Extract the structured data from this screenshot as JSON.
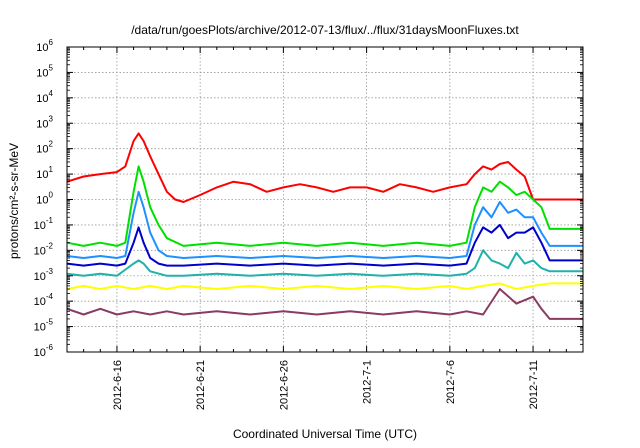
{
  "chart_data": {
    "type": "line",
    "title": "/data/run/goesPlots/archive/2012-07-13/flux/../flux/31daysMoonFluxes.txt",
    "xlabel": "Coordinated Universal Time (UTC)",
    "ylabel": "protons/cm²-s-sr-MeV",
    "y_scale": "log",
    "ylim": [
      1e-06,
      1000000.0
    ],
    "xlim_days": [
      -3,
      28
    ],
    "x_tick_labels": [
      "2012-6-16",
      "2012-6-21",
      "2012-6-26",
      "2012-7-1",
      "2012-7-6",
      "2012-7-11"
    ],
    "y_ticks": [
      {
        "base": "10",
        "exp": "-6"
      },
      {
        "base": "10",
        "exp": "-5"
      },
      {
        "base": "10",
        "exp": "-4"
      },
      {
        "base": "10",
        "exp": "-3"
      },
      {
        "base": "10",
        "exp": "-2"
      },
      {
        "base": "10",
        "exp": "-1"
      },
      {
        "base": "10",
        "exp": "0"
      },
      {
        "base": "10",
        "exp": "1"
      },
      {
        "base": "10",
        "exp": "2"
      },
      {
        "base": "10",
        "exp": "3"
      },
      {
        "base": "10",
        "exp": "4"
      },
      {
        "base": "10",
        "exp": "5"
      },
      {
        "base": "10",
        "exp": "6"
      }
    ],
    "grid": true,
    "series": [
      {
        "color": "#ff0000",
        "x": [
          -3,
          -2,
          -1,
          0,
          0.5,
          1,
          1.3,
          1.6,
          2,
          2.5,
          3,
          3.5,
          4,
          5,
          6,
          7,
          8,
          9,
          10,
          11,
          12,
          13,
          14,
          15,
          16,
          17,
          18,
          19,
          20,
          21,
          21.5,
          22,
          22.5,
          23,
          23.5,
          24,
          24.5,
          25,
          25.5,
          26,
          27,
          28
        ],
        "y": [
          5,
          8,
          10,
          12,
          20,
          200,
          400,
          200,
          50,
          10,
          2,
          1,
          0.8,
          1.5,
          3,
          5,
          4,
          2,
          3,
          4,
          3,
          2,
          3,
          3,
          2,
          4,
          3,
          2,
          3,
          4,
          10,
          20,
          15,
          25,
          30,
          15,
          8,
          1,
          1,
          1,
          1,
          1
        ]
      },
      {
        "color": "#00e000",
        "x": [
          -3,
          -2,
          -1,
          0,
          0.5,
          1,
          1.3,
          1.6,
          2,
          2.5,
          3,
          4,
          6,
          8,
          10,
          12,
          14,
          16,
          18,
          20,
          21,
          21.5,
          22,
          22.5,
          23,
          23.5,
          24,
          24.5,
          25,
          25.5,
          26,
          27,
          28
        ],
        "y": [
          0.02,
          0.015,
          0.02,
          0.015,
          0.02,
          2,
          20,
          5,
          0.5,
          0.1,
          0.03,
          0.015,
          0.02,
          0.015,
          0.02,
          0.015,
          0.02,
          0.015,
          0.02,
          0.015,
          0.02,
          0.5,
          3,
          2,
          5,
          3,
          1.5,
          2,
          1,
          0.5,
          0.07,
          0.07,
          0.07
        ]
      },
      {
        "color": "#1e90ff",
        "x": [
          -3,
          -2,
          -1,
          0,
          0.5,
          1,
          1.3,
          1.6,
          2,
          2.5,
          3,
          4,
          6,
          8,
          10,
          12,
          14,
          16,
          18,
          20,
          21,
          21.5,
          22,
          22.5,
          23,
          23.5,
          24,
          24.5,
          25,
          25.5,
          26,
          27,
          28
        ],
        "y": [
          0.006,
          0.005,
          0.006,
          0.005,
          0.006,
          0.3,
          2,
          0.5,
          0.05,
          0.01,
          0.006,
          0.005,
          0.006,
          0.005,
          0.006,
          0.005,
          0.006,
          0.005,
          0.006,
          0.005,
          0.006,
          0.1,
          0.5,
          0.2,
          0.8,
          0.3,
          0.4,
          0.2,
          0.2,
          0.05,
          0.015,
          0.015,
          0.015
        ]
      },
      {
        "color": "#0000cd",
        "x": [
          -3,
          -2,
          -1,
          0,
          0.5,
          1,
          1.3,
          1.6,
          2,
          2.5,
          3,
          4,
          6,
          8,
          10,
          12,
          14,
          16,
          18,
          20,
          21,
          21.5,
          22,
          22.5,
          23,
          23.5,
          24,
          24.5,
          25,
          25.5,
          26,
          27,
          28
        ],
        "y": [
          0.003,
          0.0025,
          0.003,
          0.0025,
          0.003,
          0.02,
          0.08,
          0.02,
          0.005,
          0.003,
          0.0025,
          0.0025,
          0.003,
          0.0025,
          0.003,
          0.0025,
          0.003,
          0.0025,
          0.003,
          0.0025,
          0.003,
          0.02,
          0.08,
          0.05,
          0.1,
          0.03,
          0.05,
          0.05,
          0.08,
          0.02,
          0.004,
          0.004,
          0.004
        ]
      },
      {
        "color": "#20b2aa",
        "x": [
          -3,
          -2,
          -1,
          0,
          1,
          1.3,
          1.6,
          2,
          3,
          4,
          6,
          8,
          10,
          12,
          14,
          16,
          18,
          20,
          21,
          21.5,
          22,
          22.5,
          23,
          23.5,
          24,
          24.5,
          25,
          25.5,
          26,
          27,
          28
        ],
        "y": [
          0.0012,
          0.001,
          0.0012,
          0.001,
          0.003,
          0.004,
          0.003,
          0.0015,
          0.001,
          0.001,
          0.0012,
          0.001,
          0.0012,
          0.001,
          0.0012,
          0.001,
          0.0012,
          0.001,
          0.0012,
          0.002,
          0.01,
          0.004,
          0.003,
          0.002,
          0.008,
          0.003,
          0.004,
          0.002,
          0.0015,
          0.0015,
          0.0015
        ]
      },
      {
        "color": "#ffff00",
        "x": [
          -3,
          -2,
          -1,
          0,
          1,
          2,
          3,
          4,
          6,
          8,
          10,
          12,
          14,
          16,
          18,
          20,
          21,
          22,
          23,
          24,
          25,
          26,
          27,
          28
        ],
        "y": [
          0.0003,
          0.0004,
          0.0003,
          0.0004,
          0.0003,
          0.0004,
          0.0003,
          0.0004,
          0.0003,
          0.0004,
          0.0003,
          0.0004,
          0.0003,
          0.0004,
          0.0003,
          0.0004,
          0.0003,
          0.0004,
          0.0005,
          0.0003,
          0.0004,
          0.0005,
          0.0005,
          0.0005
        ]
      },
      {
        "color": "#8b3a62",
        "x": [
          -3,
          -2,
          -1,
          0,
          1,
          2,
          3,
          4,
          6,
          8,
          10,
          12,
          14,
          16,
          18,
          20,
          21,
          22,
          23,
          24,
          25,
          25.5,
          26,
          27,
          28
        ],
        "y": [
          5e-05,
          3e-05,
          5e-05,
          3e-05,
          4e-05,
          3e-05,
          4e-05,
          3e-05,
          4e-05,
          3e-05,
          4e-05,
          3e-05,
          4e-05,
          3e-05,
          4e-05,
          3e-05,
          4e-05,
          3e-05,
          0.0003,
          8e-05,
          0.00015,
          5e-05,
          2e-05,
          2e-05,
          2e-05
        ]
      }
    ]
  }
}
